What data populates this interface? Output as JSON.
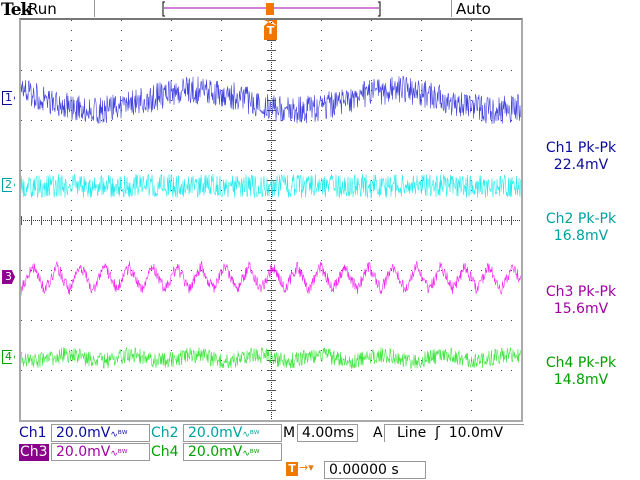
{
  "header": {
    "brand": "Tek",
    "state": "Run",
    "trigger_mode": "Auto"
  },
  "channels": [
    {
      "id": "1",
      "label": "Ch1",
      "scale": "20.0mV",
      "stat_label": "Ch1 Pk-Pk",
      "stat_value": "22.4mV",
      "color": "#2020d8",
      "text_color": "#0a0a98"
    },
    {
      "id": "2",
      "label": "Ch2",
      "scale": "20.0mV",
      "stat_label": "Ch2 Pk-Pk",
      "stat_value": "16.8mV",
      "color": "#00e8e8",
      "text_color": "#00a0a0"
    },
    {
      "id": "3",
      "label": "Ch3",
      "scale": "20.0mV",
      "stat_label": "Ch3 Pk-Pk",
      "stat_value": "15.6mV",
      "color": "#f000f0",
      "text_color": "#a000a0"
    },
    {
      "id": "4",
      "label": "Ch4",
      "scale": "20.0mV",
      "stat_label": "Ch4 Pk-Pk",
      "stat_value": "14.8mV",
      "color": "#20e020",
      "text_color": "#00a000"
    }
  ],
  "bandwidth_icon": "bw-limit-icon",
  "timebase": {
    "prefix": "M",
    "value": "4.00ms"
  },
  "trigger": {
    "mode": "A",
    "source": "Line",
    "slope_icon": "rising-edge-icon",
    "level": "10.0mV",
    "marker": "T",
    "position": "0.00000 s"
  }
}
